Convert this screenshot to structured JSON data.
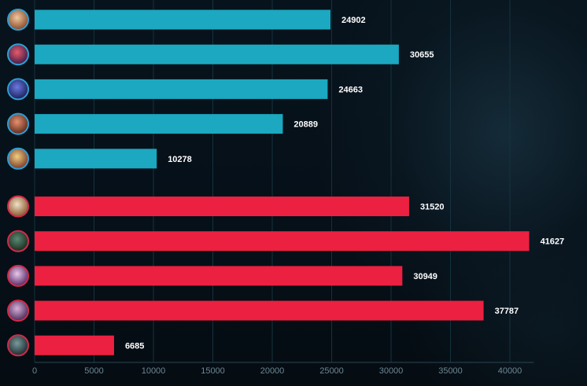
{
  "chart_data": {
    "type": "bar",
    "orientation": "horizontal",
    "grid": true,
    "xlim": [
      0,
      42000
    ],
    "x_ticks": [
      "0",
      "5000",
      "10000",
      "15000",
      "20000",
      "25000",
      "30000",
      "35000",
      "40000"
    ],
    "title": "",
    "xlabel": "",
    "ylabel": "",
    "series": [
      {
        "team": "blue",
        "color": "#1ba8c0",
        "ring_color": "#2e9fd6",
        "values": [
          24902,
          30655,
          24663,
          20889,
          10278
        ],
        "labels": [
          "24902",
          "30655",
          "24663",
          "20889",
          "10278"
        ],
        "icons": [
          "champion-portrait",
          "champion-portrait",
          "champion-portrait",
          "champion-portrait",
          "champion-portrait"
        ]
      },
      {
        "team": "red",
        "color": "#ec2040",
        "ring_color": "#d22a48",
        "values": [
          31520,
          41627,
          30949,
          37787,
          6685
        ],
        "labels": [
          "31520",
          "41627",
          "30949",
          "37787",
          "6685"
        ],
        "icons": [
          "champion-portrait",
          "champion-portrait",
          "champion-portrait",
          "champion-portrait",
          "champion-portrait"
        ]
      }
    ]
  }
}
